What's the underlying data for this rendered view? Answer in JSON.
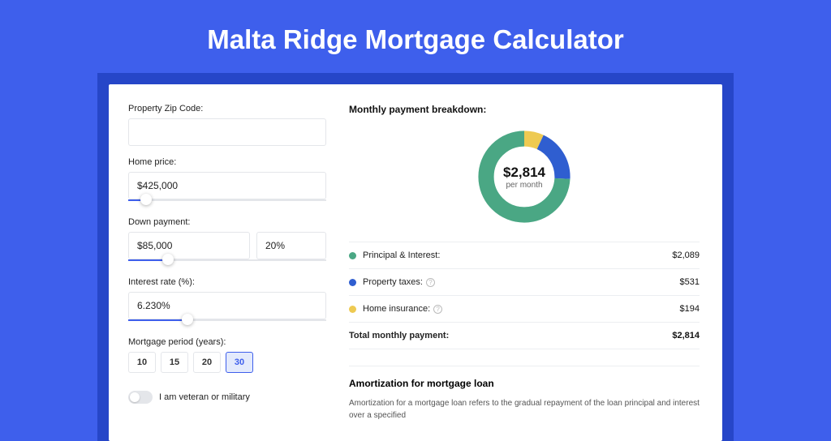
{
  "colors": {
    "page_bg": "#3e5fec",
    "frame_bg": "#2646c8",
    "card_bg": "#ffffff",
    "border": "#e4e6ea",
    "accent": "#3e5fec",
    "text_primary": "#111111",
    "text_secondary": "#666666"
  },
  "hero": {
    "title": "Malta Ridge Mortgage Calculator"
  },
  "form": {
    "zip": {
      "label": "Property Zip Code:",
      "value": ""
    },
    "home_price": {
      "label": "Home price:",
      "value": "$425,000",
      "slider_percent": 9
    },
    "down_payment": {
      "label": "Down payment:",
      "amount": "$85,000",
      "percent": "20%",
      "slider_percent": 20
    },
    "interest_rate": {
      "label": "Interest rate (%):",
      "value": "6.230%",
      "slider_percent": 30
    },
    "mortgage_period": {
      "label": "Mortgage period (years):",
      "options": [
        "10",
        "15",
        "20",
        "30"
      ],
      "selected": "30"
    },
    "veteran": {
      "label": "I am veteran or military",
      "checked": false
    }
  },
  "breakdown": {
    "title": "Monthly payment breakdown:",
    "donut": {
      "center_value": "$2,814",
      "center_sub": "per month",
      "ring_width": 20,
      "segments": [
        {
          "key": "principal_interest",
          "value": 2089,
          "color": "#4aa784"
        },
        {
          "key": "property_taxes",
          "value": 531,
          "color": "#2f5ed0"
        },
        {
          "key": "home_insurance",
          "value": 194,
          "color": "#eeca52"
        }
      ]
    },
    "items": [
      {
        "label": "Principal & Interest:",
        "value": "$2,089",
        "color": "#4aa784",
        "info": false
      },
      {
        "label": "Property taxes:",
        "value": "$531",
        "color": "#2f5ed0",
        "info": true
      },
      {
        "label": "Home insurance:",
        "value": "$194",
        "color": "#eeca52",
        "info": true
      }
    ],
    "total": {
      "label": "Total monthly payment:",
      "value": "$2,814"
    }
  },
  "amortization": {
    "title": "Amortization for mortgage loan",
    "text": "Amortization for a mortgage loan refers to the gradual repayment of the loan principal and interest over a specified"
  }
}
